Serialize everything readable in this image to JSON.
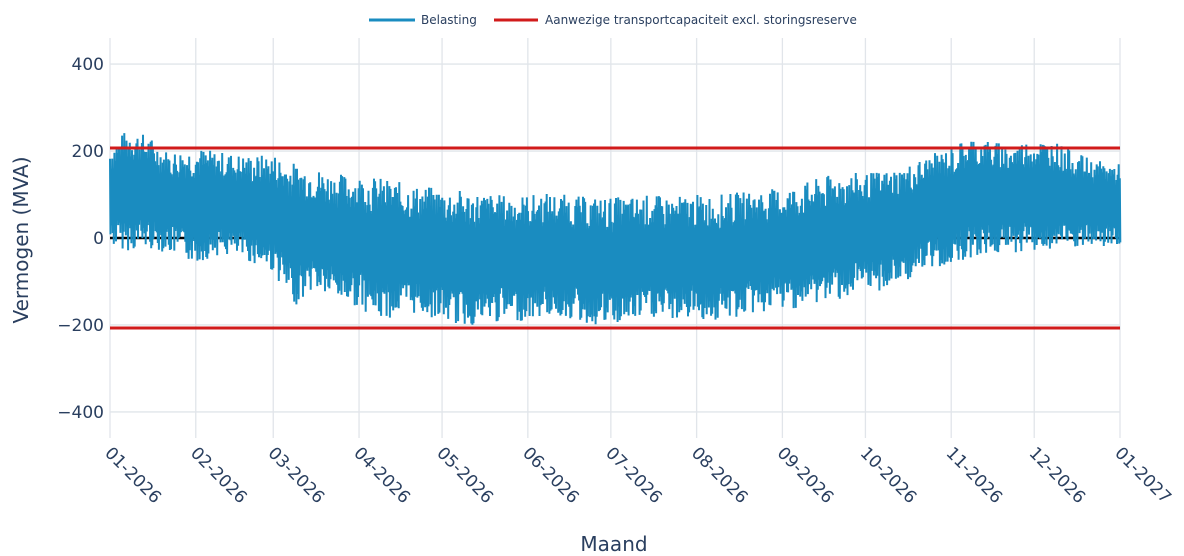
{
  "chart_data": {
    "type": "line",
    "xlabel": "Maand",
    "ylabel": "Vermogen (MVA)",
    "ylim": [
      -460,
      460
    ],
    "yticks": [
      400,
      200,
      0,
      -200,
      -400
    ],
    "ytick_labels": [
      "400",
      "200",
      "0",
      "−200",
      "−400"
    ],
    "x_range": [
      "2026-01-01",
      "2027-01-01"
    ],
    "xtick_labels": [
      "01-2026",
      "02-2026",
      "03-2026",
      "04-2026",
      "05-2026",
      "06-2026",
      "07-2026",
      "08-2026",
      "09-2026",
      "10-2026",
      "11-2026",
      "12-2026",
      "01-2027"
    ],
    "grid": true,
    "legend_position": "top-center",
    "series": [
      {
        "name": "Belasting",
        "color": "#1a8cc0",
        "x": [
          "2026-01-01",
          "2026-01-08",
          "2026-01-15",
          "2026-01-22",
          "2026-02-01",
          "2026-02-08",
          "2026-02-15",
          "2026-02-22",
          "2026-03-01",
          "2026-03-08",
          "2026-03-15",
          "2026-03-22",
          "2026-04-01",
          "2026-04-08",
          "2026-04-15",
          "2026-04-22",
          "2026-05-01",
          "2026-05-08",
          "2026-05-15",
          "2026-05-22",
          "2026-06-01",
          "2026-06-08",
          "2026-06-15",
          "2026-06-22",
          "2026-07-01",
          "2026-07-08",
          "2026-07-15",
          "2026-07-22",
          "2026-08-01",
          "2026-08-08",
          "2026-08-15",
          "2026-08-22",
          "2026-09-01",
          "2026-09-08",
          "2026-09-15",
          "2026-09-22",
          "2026-10-01",
          "2026-10-08",
          "2026-10-15",
          "2026-10-22",
          "2026-11-01",
          "2026-11-08",
          "2026-11-15",
          "2026-11-22",
          "2026-12-01",
          "2026-12-08",
          "2026-12-15",
          "2026-12-22",
          "2027-01-01"
        ],
        "max": [
          215,
          255,
          235,
          200,
          210,
          200,
          195,
          190,
          195,
          175,
          165,
          150,
          145,
          140,
          130,
          120,
          115,
          110,
          105,
          100,
          100,
          105,
          100,
          95,
          95,
          95,
          100,
          95,
          100,
          100,
          105,
          110,
          115,
          125,
          140,
          150,
          150,
          155,
          165,
          185,
          210,
          235,
          225,
          215,
          230,
          225,
          200,
          180,
          170
        ],
        "min": [
          -20,
          -30,
          -25,
          -35,
          -60,
          -40,
          -45,
          -60,
          -80,
          -160,
          -120,
          -140,
          -160,
          -190,
          -180,
          -175,
          -190,
          -205,
          -200,
          -195,
          -190,
          -180,
          -185,
          -200,
          -205,
          -195,
          -185,
          -190,
          -185,
          -195,
          -185,
          -175,
          -165,
          -160,
          -150,
          -140,
          -130,
          -120,
          -100,
          -80,
          -60,
          -45,
          -40,
          -35,
          -30,
          -30,
          -25,
          -25,
          -20
        ]
      },
      {
        "name": "Aanwezige transportcapaciteit excl. storingsreserve",
        "color": "#d11b1b",
        "bounds": [
          207,
          -207
        ]
      }
    ],
    "zero_line_color": "#000000"
  },
  "legend": {
    "belasting": "Belasting",
    "capaciteit": "Aanwezige transportcapaciteit excl. storingsreserve"
  }
}
